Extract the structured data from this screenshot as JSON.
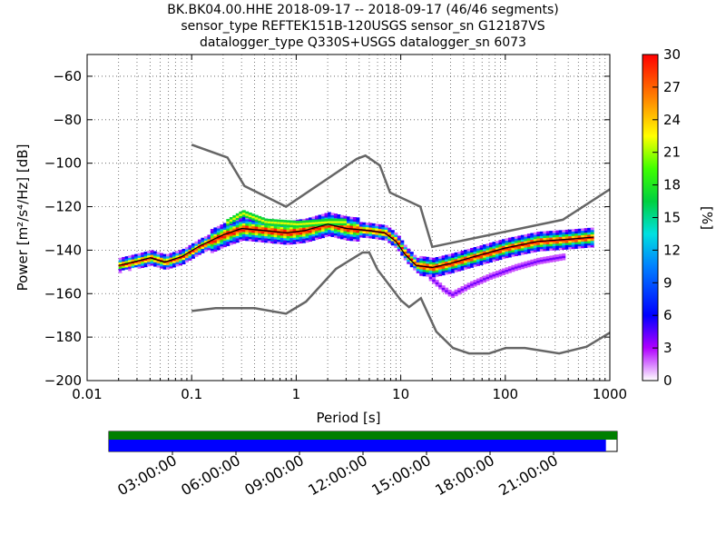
{
  "title_lines": [
    "BK.BK04.00.HHE   2018-09-17 -- 2018-09-17  (46/46 segments)",
    "sensor_type REFTEK151B-120USGS sensor_sn G12187VS",
    "datalogger_type Q330S+USGS datalogger_sn 6073"
  ],
  "chart_data": {
    "type": "heatmap",
    "title": "BK.BK04.00.HHE   2018-09-17 -- 2018-09-17  (46/46 segments)",
    "xlabel": "Period [s]",
    "ylabel": "Power [m²/s⁴/Hz] [dB]",
    "x_scale": "log",
    "xlim": [
      0.01,
      1000
    ],
    "ylim": [
      -200,
      -50
    ],
    "x_ticks": [
      0.01,
      0.1,
      1,
      10,
      100,
      1000
    ],
    "x_tick_labels": [
      "0.01",
      "0.1",
      "1",
      "10",
      "100",
      "1000"
    ],
    "y_ticks": [
      -200,
      -180,
      -160,
      -140,
      -120,
      -100,
      -80,
      -60
    ],
    "y_tick_labels": [
      "−200",
      "−180",
      "−160",
      "−140",
      "−120",
      "−100",
      "−80",
      "−60"
    ],
    "grid": true,
    "colorbar": {
      "label": "[%]",
      "range": [
        0,
        30
      ],
      "ticks": [
        0,
        3,
        6,
        9,
        12,
        15,
        18,
        21,
        24,
        27,
        30
      ],
      "tick_labels": [
        "0",
        "3",
        "6",
        "9",
        "12",
        "15",
        "18",
        "21",
        "24",
        "27",
        "30"
      ]
    },
    "noise_model_high": [
      {
        "period": 0.1,
        "db": -91.5
      },
      {
        "period": 0.22,
        "db": -97.4
      },
      {
        "period": 0.32,
        "db": -110.5
      },
      {
        "period": 0.8,
        "db": -120
      },
      {
        "period": 3.8,
        "db": -98
      },
      {
        "period": 4.6,
        "db": -96.5
      },
      {
        "period": 6.3,
        "db": -101
      },
      {
        "period": 7.9,
        "db": -113.5
      },
      {
        "period": 15.4,
        "db": -120
      },
      {
        "period": 20,
        "db": -138.5
      },
      {
        "period": 354.8,
        "db": -126
      },
      {
        "period": 1000,
        "db": -112
      }
    ],
    "noise_model_low": [
      {
        "period": 0.1,
        "db": -168
      },
      {
        "period": 0.17,
        "db": -166.7
      },
      {
        "period": 0.4,
        "db": -166.7
      },
      {
        "period": 0.8,
        "db": -169.2
      },
      {
        "period": 1.24,
        "db": -163.7
      },
      {
        "period": 2.4,
        "db": -148.6
      },
      {
        "period": 4.3,
        "db": -141.1
      },
      {
        "period": 5,
        "db": -141.1
      },
      {
        "period": 6,
        "db": -149
      },
      {
        "period": 10,
        "db": -163
      },
      {
        "period": 12,
        "db": -166.2
      },
      {
        "period": 15.6,
        "db": -162.1
      },
      {
        "period": 21.9,
        "db": -177.5
      },
      {
        "period": 31.6,
        "db": -185
      },
      {
        "period": 45,
        "db": -187.5
      },
      {
        "period": 70,
        "db": -187.5
      },
      {
        "period": 101,
        "db": -185
      },
      {
        "period": 154,
        "db": -185
      },
      {
        "period": 328,
        "db": -187.5
      },
      {
        "period": 600,
        "db": -184.4
      },
      {
        "period": 1000,
        "db": -178
      }
    ],
    "median_psd": [
      {
        "period": 0.02,
        "db": -147
      },
      {
        "period": 0.03,
        "db": -145
      },
      {
        "period": 0.04,
        "db": -143.5
      },
      {
        "period": 0.055,
        "db": -145.5
      },
      {
        "period": 0.08,
        "db": -143
      },
      {
        "period": 0.12,
        "db": -138
      },
      {
        "period": 0.2,
        "db": -133
      },
      {
        "period": 0.3,
        "db": -130
      },
      {
        "period": 0.5,
        "db": -131
      },
      {
        "period": 0.8,
        "db": -132
      },
      {
        "period": 1.2,
        "db": -131
      },
      {
        "period": 2,
        "db": -128
      },
      {
        "period": 3,
        "db": -130
      },
      {
        "period": 5,
        "db": -131
      },
      {
        "period": 7,
        "db": -132
      },
      {
        "period": 9,
        "db": -136
      },
      {
        "period": 11,
        "db": -142
      },
      {
        "period": 14,
        "db": -147
      },
      {
        "period": 20,
        "db": -148
      },
      {
        "period": 30,
        "db": -146
      },
      {
        "period": 50,
        "db": -143
      },
      {
        "period": 100,
        "db": -139
      },
      {
        "period": 200,
        "db": -136
      },
      {
        "period": 400,
        "db": -135
      },
      {
        "period": 700,
        "db": -134
      }
    ],
    "low_mode_psd": [
      {
        "period": 18,
        "db": -152
      },
      {
        "period": 25,
        "db": -158
      },
      {
        "period": 30,
        "db": -160.5
      },
      {
        "period": 45,
        "db": -156
      },
      {
        "period": 70,
        "db": -152
      },
      {
        "period": 120,
        "db": -148
      },
      {
        "period": 200,
        "db": -145
      },
      {
        "period": 350,
        "db": -143
      }
    ],
    "high_mode_psd": [
      {
        "period": 0.2,
        "db": -128
      },
      {
        "period": 0.3,
        "db": -123
      },
      {
        "period": 0.5,
        "db": -127
      },
      {
        "period": 1,
        "db": -128
      },
      {
        "period": 2,
        "db": -127
      },
      {
        "period": 3,
        "db": -127
      }
    ]
  },
  "timeline": {
    "tick_labels": [
      "03:00:00",
      "06:00:00",
      "09:00:00",
      "12:00:00",
      "15:00:00",
      "18:00:00",
      "21:00:00"
    ],
    "coverage_fraction": 1.0,
    "processed_fraction": 0.978,
    "coverage_color": "#007f00",
    "processed_color": "#0000ff"
  }
}
